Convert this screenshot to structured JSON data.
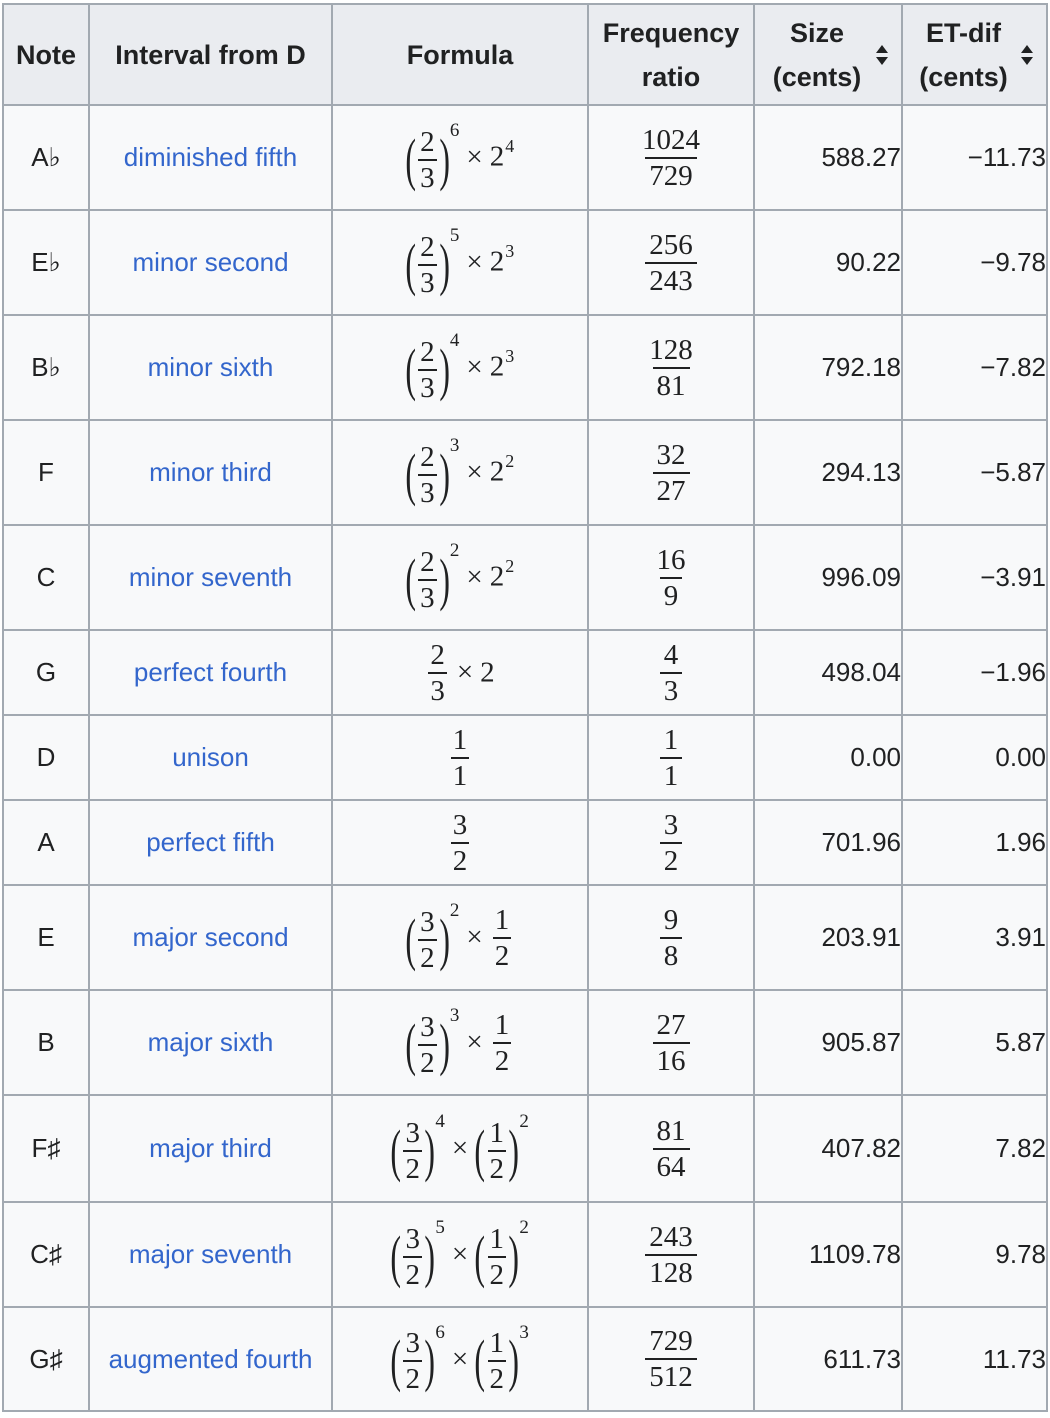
{
  "headers": {
    "note": "Note",
    "interval": "Interval from D",
    "formula": "Formula",
    "ratio_line1": "Frequency",
    "ratio_line2": "ratio",
    "size_line1": "Size",
    "size_line2": "(cents)",
    "etdif_line1": "ET-dif",
    "etdif_line2": "(cents)"
  },
  "rows": [
    {
      "note": "A♭",
      "interval": "diminished fifth",
      "ratio_n": "1024",
      "ratio_d": "729",
      "size": "588.27",
      "etdif": "−11.73"
    },
    {
      "note": "E♭",
      "interval": "minor second",
      "ratio_n": "256",
      "ratio_d": "243",
      "size": "90.22",
      "etdif": "−9.78"
    },
    {
      "note": "B♭",
      "interval": "minor sixth",
      "ratio_n": "128",
      "ratio_d": "81",
      "size": "792.18",
      "etdif": "−7.82"
    },
    {
      "note": "F",
      "interval": "minor third",
      "ratio_n": "32",
      "ratio_d": "27",
      "size": "294.13",
      "etdif": "−5.87"
    },
    {
      "note": "C",
      "interval": "minor seventh",
      "ratio_n": "16",
      "ratio_d": "9",
      "size": "996.09",
      "etdif": "−3.91"
    },
    {
      "note": "G",
      "interval": "perfect fourth",
      "ratio_n": "4",
      "ratio_d": "3",
      "size": "498.04",
      "etdif": "−1.96"
    },
    {
      "note": "D",
      "interval": "unison",
      "ratio_n": "1",
      "ratio_d": "1",
      "size": "0.00",
      "etdif": "0.00"
    },
    {
      "note": "A",
      "interval": "perfect fifth",
      "ratio_n": "3",
      "ratio_d": "2",
      "size": "701.96",
      "etdif": "1.96"
    },
    {
      "note": "E",
      "interval": "major second",
      "ratio_n": "9",
      "ratio_d": "8",
      "size": "203.91",
      "etdif": "3.91"
    },
    {
      "note": "B",
      "interval": "major sixth",
      "ratio_n": "27",
      "ratio_d": "16",
      "size": "905.87",
      "etdif": "5.87"
    },
    {
      "note": "F♯",
      "interval": "major third",
      "ratio_n": "81",
      "ratio_d": "64",
      "size": "407.82",
      "etdif": "7.82"
    },
    {
      "note": "C♯",
      "interval": "major seventh",
      "ratio_n": "243",
      "ratio_d": "128",
      "size": "1109.78",
      "etdif": "9.78"
    },
    {
      "note": "G♯",
      "interval": "augmented fourth",
      "ratio_n": "729",
      "ratio_d": "512",
      "size": "611.73",
      "etdif": "11.73"
    }
  ],
  "formulas": {
    "r0": {
      "n": "2",
      "d": "3",
      "exp": "6",
      "base": "2",
      "bexp": "4"
    },
    "r1": {
      "n": "2",
      "d": "3",
      "exp": "5",
      "base": "2",
      "bexp": "3"
    },
    "r2": {
      "n": "2",
      "d": "3",
      "exp": "4",
      "base": "2",
      "bexp": "3"
    },
    "r3": {
      "n": "2",
      "d": "3",
      "exp": "3",
      "base": "2",
      "bexp": "2"
    },
    "r4": {
      "n": "2",
      "d": "3",
      "exp": "2",
      "base": "2",
      "bexp": "2"
    },
    "r5": {
      "n": "2",
      "d": "3",
      "mult": "2"
    },
    "r6": {
      "n": "1",
      "d": "1"
    },
    "r7": {
      "n": "3",
      "d": "2"
    },
    "r8": {
      "n": "3",
      "d": "2",
      "exp": "2",
      "n2": "1",
      "d2": "2"
    },
    "r9": {
      "n": "3",
      "d": "2",
      "exp": "3",
      "n2": "1",
      "d2": "2"
    },
    "r10": {
      "n": "3",
      "d": "2",
      "exp": "4",
      "n2": "1",
      "d2": "2",
      "exp2": "2"
    },
    "r11": {
      "n": "3",
      "d": "2",
      "exp": "5",
      "n2": "1",
      "d2": "2",
      "exp2": "2"
    },
    "r12": {
      "n": "3",
      "d": "2",
      "exp": "6",
      "n2": "1",
      "d2": "2",
      "exp2": "3"
    }
  },
  "symbols": {
    "times": "×",
    "lparen": "(",
    "rparen": ")"
  },
  "icons": {
    "sort": "sort-arrows-icon"
  },
  "colors": {
    "link": "#3366cc",
    "header_bg": "#eaecf0",
    "cell_bg": "#f8f9fa",
    "border": "#a2a9b1"
  }
}
